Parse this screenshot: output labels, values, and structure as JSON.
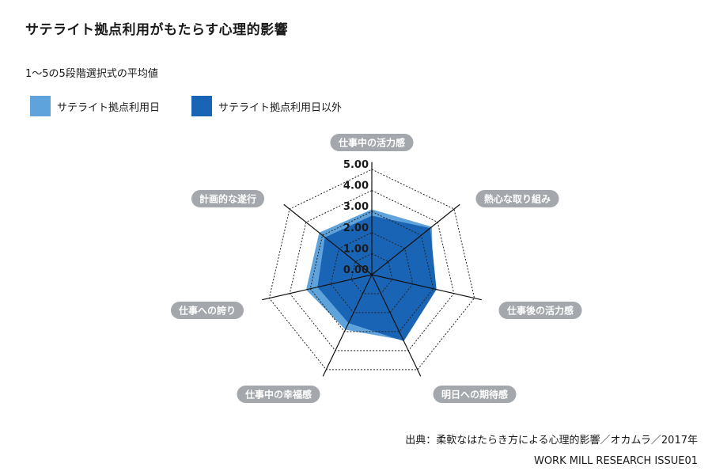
{
  "title": "サテライト拠点利用がもたらす心理的影響",
  "subtitle": "1〜5の5段階選択式の平均値",
  "source": "出典：柔軟なはたらき方による心理的影響／オカムラ／2017年",
  "credit": "WORK MILL RESEARCH ISSUE01",
  "chart_data": {
    "type": "radar",
    "axes": [
      "仕事中の活力感",
      "熱心な取り組み",
      "仕事後の活力感",
      "明日への期待感",
      "仕事中の幸福感",
      "仕事への誇り",
      "計画的な遂行"
    ],
    "tick_labels": [
      "0.00",
      "1.00",
      "2.00",
      "3.00",
      "4.00",
      "5.00"
    ],
    "range": [
      0,
      5
    ],
    "grid": "dotted polygons",
    "legend_position": "top-left",
    "series": [
      {
        "name": "サテライト拠点利用日",
        "color": "#5fa3dc",
        "values": [
          3.1,
          3.65,
          3.0,
          3.45,
          2.9,
          3.2,
          3.2
        ]
      },
      {
        "name": "サテライト拠点利用日以外",
        "color": "#1a64b5",
        "values": [
          2.8,
          3.55,
          3.15,
          3.5,
          2.55,
          2.65,
          2.85
        ]
      }
    ]
  }
}
